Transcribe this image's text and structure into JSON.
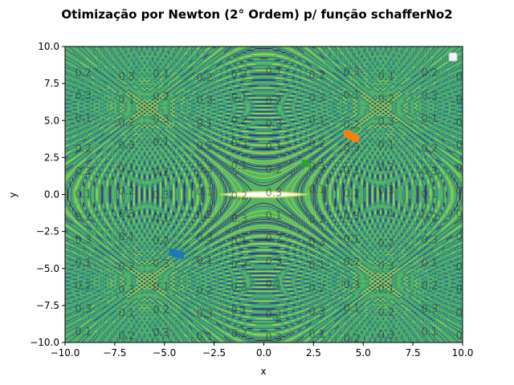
{
  "chart_data": {
    "type": "contour",
    "title": "Otimização por Newton (2° Ordem) p/ função schafferNo2",
    "xlabel": "x",
    "ylabel": "y",
    "xlim": [
      -10,
      10
    ],
    "ylim": [
      -10,
      10
    ],
    "x_ticks": [
      -10,
      -7.5,
      -5,
      -2.5,
      0,
      2.5,
      5,
      7.5,
      10
    ],
    "y_ticks": [
      -10,
      -7.5,
      -5,
      -2.5,
      0,
      2.5,
      5,
      7.5,
      10
    ],
    "x_tick_labels": [
      "−10.0",
      "−7.5",
      "−5.0",
      "−2.5",
      "0.0",
      "2.5",
      "5.0",
      "7.5",
      "10.0"
    ],
    "y_tick_labels": [
      "−10.0",
      "−7.5",
      "−5.0",
      "−2.5",
      "0.0",
      "2.5",
      "5.0",
      "7.5",
      "10.0"
    ],
    "contour_label_values": [
      "0.1",
      "0.2",
      "0.3"
    ],
    "colormap": "viridis",
    "grid": false,
    "legend": "top-right",
    "legend_entries": [],
    "series": [
      {
        "color": "#1f77b4",
        "points": [
          [
            -4.6,
            -3.9
          ],
          [
            -4.4,
            -4.0
          ],
          [
            -4.2,
            -4.1
          ]
        ]
      },
      {
        "color": "#ff7f0e",
        "points": [
          [
            4.2,
            4.1
          ],
          [
            4.4,
            3.95
          ],
          [
            4.6,
            3.8
          ]
        ]
      },
      {
        "color": "#2ca02c",
        "points": [
          [
            2.1,
            2.1
          ]
        ]
      }
    ]
  }
}
